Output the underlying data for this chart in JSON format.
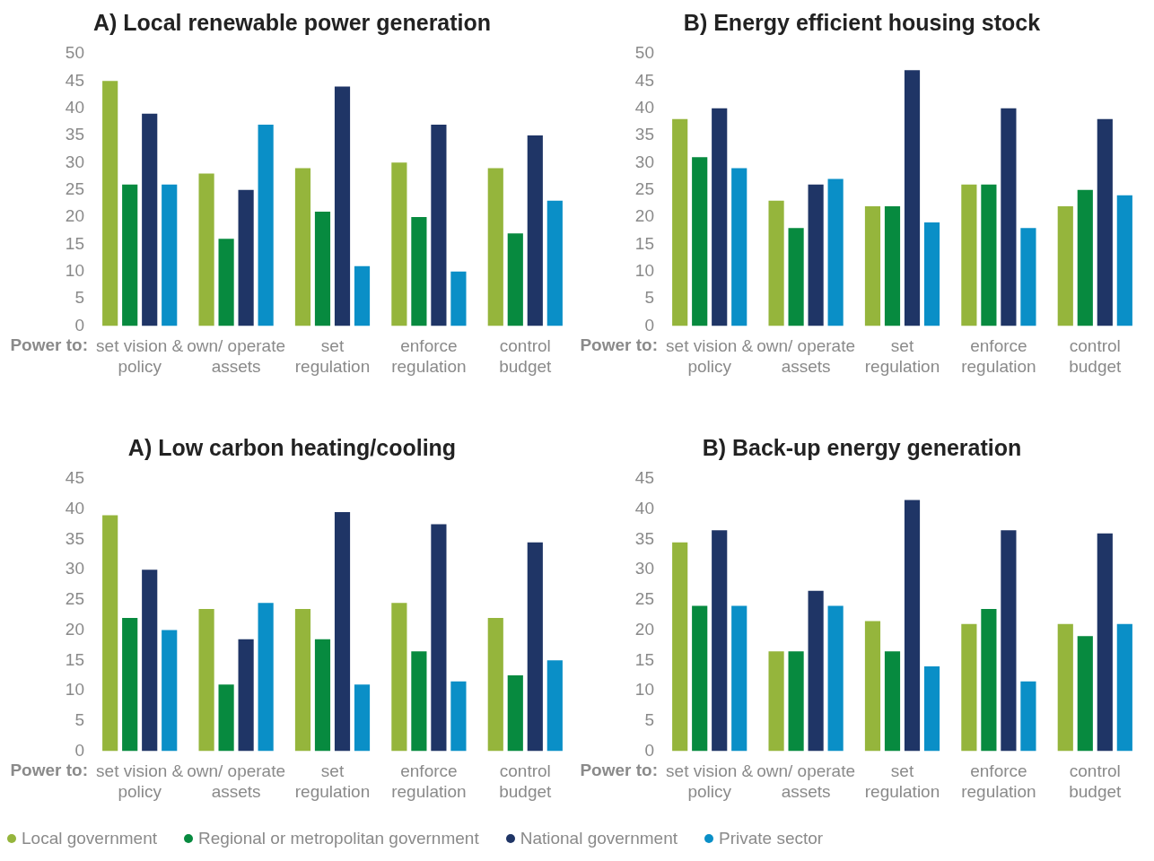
{
  "chart_data": [
    {
      "type": "bar",
      "title": "A) Local renewable power generation",
      "xlabel": "Power to:",
      "categories": [
        "set vision & policy",
        "own/ operate assets",
        "set regulation",
        "enforce regulation",
        "control budget"
      ],
      "ylim": [
        0,
        50
      ],
      "yticks": [
        0,
        5,
        10,
        15,
        20,
        25,
        30,
        35,
        40,
        45,
        50
      ],
      "grid": false,
      "series": [
        {
          "color": "#95b53c",
          "values": [
            45,
            28,
            29,
            30,
            29
          ]
        },
        {
          "color": "#078a3f",
          "values": [
            26,
            16,
            21,
            20,
            17
          ]
        },
        {
          "color": "#1f3566",
          "values": [
            39,
            25,
            44,
            37,
            35
          ]
        },
        {
          "color": "#0a8fc7",
          "values": [
            26,
            37,
            11,
            10,
            23
          ]
        }
      ]
    },
    {
      "type": "bar",
      "title": "B) Energy efficient housing stock",
      "xlabel": "Power to:",
      "categories": [
        "set vision & policy",
        "own/ operate assets",
        "set regulation",
        "enforce regulation",
        "control budget"
      ],
      "ylim": [
        0,
        50
      ],
      "yticks": [
        0,
        5,
        10,
        15,
        20,
        25,
        30,
        35,
        40,
        45,
        50
      ],
      "grid": false,
      "series": [
        {
          "color": "#95b53c",
          "values": [
            38,
            23,
            22,
            26,
            22
          ]
        },
        {
          "color": "#078a3f",
          "values": [
            31,
            18,
            22,
            26,
            25
          ]
        },
        {
          "color": "#1f3566",
          "values": [
            40,
            26,
            47,
            40,
            38
          ]
        },
        {
          "color": "#0a8fc7",
          "values": [
            29,
            27,
            19,
            18,
            24
          ]
        }
      ]
    },
    {
      "type": "bar",
      "title": "A) Low carbon heating/cooling",
      "xlabel": "Power to:",
      "categories": [
        "set vision & policy",
        "own/ operate assets",
        "set regulation",
        "enforce regulation",
        "control budget"
      ],
      "ylim": [
        0,
        45
      ],
      "yticks": [
        0,
        5,
        10,
        15,
        20,
        25,
        30,
        35,
        40,
        45
      ],
      "grid": false,
      "series": [
        {
          "color": "#95b53c",
          "values": [
            39,
            23.5,
            23.5,
            24.5,
            22
          ]
        },
        {
          "color": "#078a3f",
          "values": [
            22,
            11,
            18.5,
            16.5,
            12.5
          ]
        },
        {
          "color": "#1f3566",
          "values": [
            30,
            18.5,
            39.5,
            37.5,
            34.5
          ]
        },
        {
          "color": "#0a8fc7",
          "values": [
            20,
            24.5,
            11,
            11.5,
            15
          ]
        }
      ]
    },
    {
      "type": "bar",
      "title": "B) Back-up energy generation",
      "xlabel": "Power to:",
      "categories": [
        "set vision & policy",
        "own/ operate assets",
        "set regulation",
        "enforce regulation",
        "control budget"
      ],
      "ylim": [
        0,
        45
      ],
      "yticks": [
        0,
        5,
        10,
        15,
        20,
        25,
        30,
        35,
        40,
        45
      ],
      "grid": false,
      "legend": "bottom",
      "series": [
        {
          "name": "Local government",
          "color": "#95b53c",
          "values": [
            34.5,
            16.5,
            21.5,
            21,
            21
          ]
        },
        {
          "name": "Regional or metropolitan government",
          "color": "#078a3f",
          "values": [
            24,
            16.5,
            16.5,
            23.5,
            19
          ]
        },
        {
          "name": "National government",
          "color": "#1f3566",
          "values": [
            36.5,
            26.5,
            41.5,
            36.5,
            36
          ]
        },
        {
          "name": "Private sector",
          "color": "#0a8fc7",
          "values": [
            24,
            24,
            14,
            11.5,
            21
          ]
        }
      ]
    }
  ]
}
